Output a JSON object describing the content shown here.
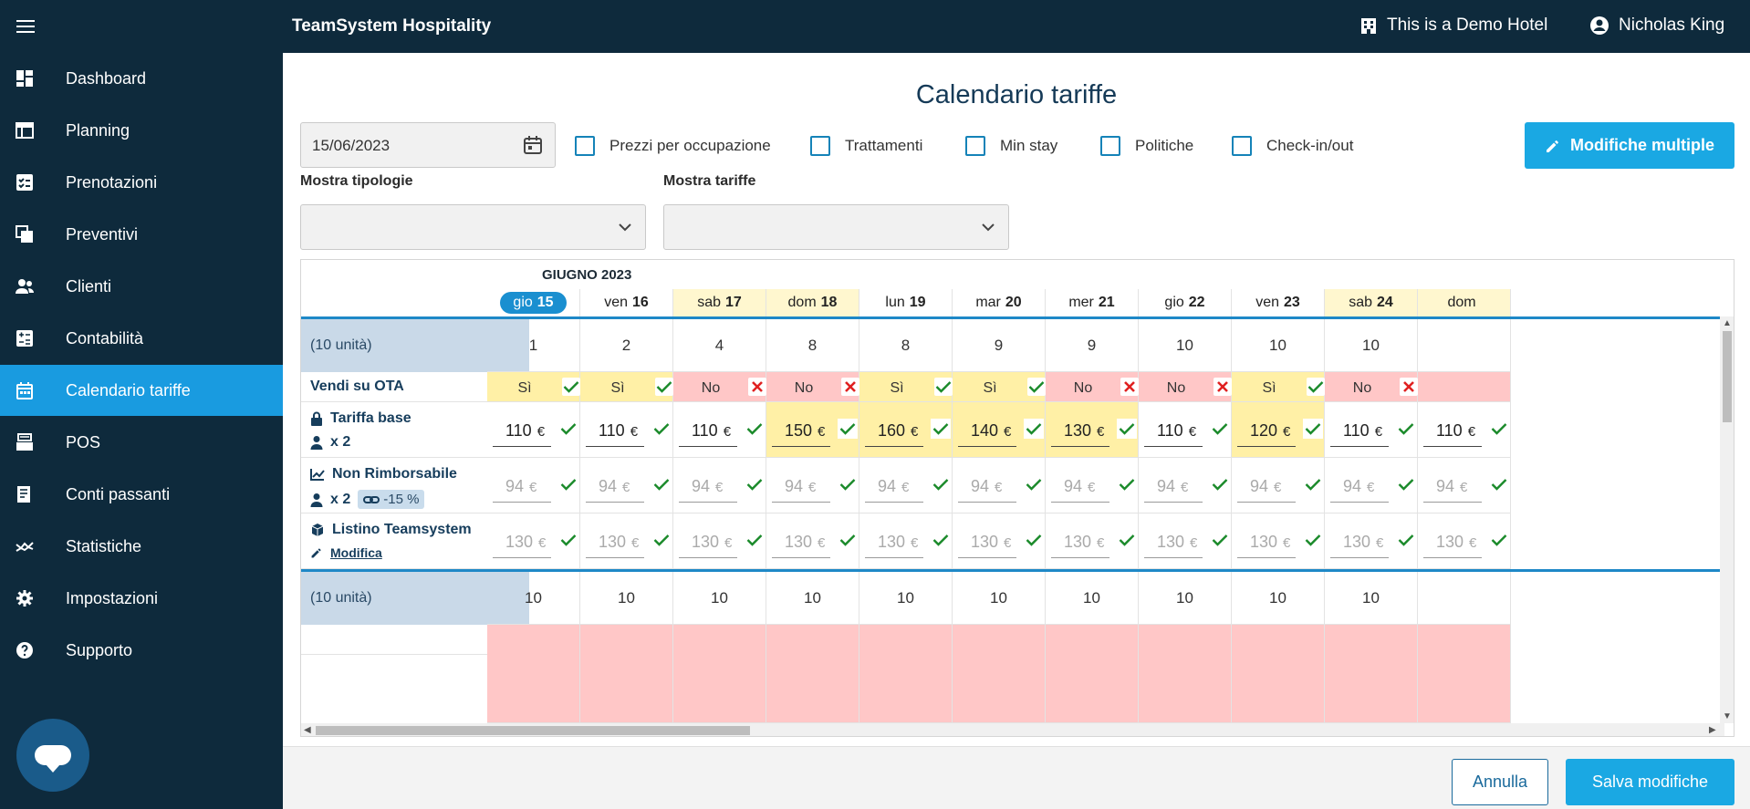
{
  "topbar": {
    "app_title": "TeamSystem Hospitality",
    "hotel": "This is a Demo Hotel",
    "user": "Nicholas King"
  },
  "sidebar": {
    "items": [
      {
        "label": "Dashboard",
        "icon": "dashboard-icon"
      },
      {
        "label": "Planning",
        "icon": "planning-icon"
      },
      {
        "label": "Prenotazioni",
        "icon": "bookings-icon"
      },
      {
        "label": "Preventivi",
        "icon": "quotes-icon"
      },
      {
        "label": "Clienti",
        "icon": "clients-icon"
      },
      {
        "label": "Contabilità",
        "icon": "accounting-icon"
      },
      {
        "label": "Calendario tariffe",
        "icon": "calendar-icon",
        "active": true
      },
      {
        "label": "POS",
        "icon": "pos-icon"
      },
      {
        "label": "Conti passanti",
        "icon": "accounts-icon"
      },
      {
        "label": "Statistiche",
        "icon": "stats-icon"
      },
      {
        "label": "Impostazioni",
        "icon": "gear-icon"
      },
      {
        "label": "Supporto",
        "icon": "help-icon"
      }
    ]
  },
  "page": {
    "title": "Calendario tariffe",
    "date_value": "15/06/2023",
    "checkboxes": [
      "Prezzi per occupazione",
      "Trattamenti",
      "Min stay",
      "Politiche",
      "Check-in/out"
    ],
    "multi_button": "Modifiche multiple",
    "filter_types_label": "Mostra tipologie",
    "filter_rates_label": "Mostra tariffe"
  },
  "grid": {
    "month": "GIUGNO 2023",
    "days": [
      {
        "dow": "gio",
        "num": "15",
        "today": true
      },
      {
        "dow": "ven",
        "num": "16"
      },
      {
        "dow": "sab",
        "num": "17",
        "weekend": true
      },
      {
        "dow": "dom",
        "num": "18",
        "weekend": true
      },
      {
        "dow": "lun",
        "num": "19"
      },
      {
        "dow": "mar",
        "num": "20"
      },
      {
        "dow": "mer",
        "num": "21"
      },
      {
        "dow": "gio",
        "num": "22"
      },
      {
        "dow": "ven",
        "num": "23"
      },
      {
        "dow": "sab",
        "num": "24",
        "weekend": true
      },
      {
        "dow": "dom",
        "num": "",
        "weekend": true
      }
    ],
    "units_label": "(10 unità)",
    "availability": [
      "1",
      "2",
      "4",
      "8",
      "8",
      "9",
      "9",
      "10",
      "10",
      "10",
      ""
    ],
    "ota_label": "Vendi su OTA",
    "ota": [
      "Sì",
      "Sì",
      "No",
      "No",
      "Sì",
      "Sì",
      "No",
      "No",
      "Sì",
      "No",
      ""
    ],
    "base_rate": {
      "name": "Tariffa base",
      "occupancy": "x 2",
      "values": [
        "110",
        "110",
        "110",
        "150",
        "160",
        "140",
        "130",
        "110",
        "120",
        "110",
        "110"
      ],
      "highlight": [
        false,
        false,
        false,
        true,
        true,
        true,
        true,
        false,
        true,
        false,
        false
      ]
    },
    "nonref_rate": {
      "name": "Non Rimborsabile",
      "occupancy": "x 2",
      "discount": "-15 %",
      "values": [
        "94",
        "94",
        "94",
        "94",
        "94",
        "94",
        "94",
        "94",
        "94",
        "94",
        "94"
      ]
    },
    "listino": {
      "name": "Listino Teamsystem",
      "edit": "Modifica",
      "values": [
        "130",
        "130",
        "130",
        "130",
        "130",
        "130",
        "130",
        "130",
        "130",
        "130",
        "130"
      ]
    },
    "units_label_2": "(10 unità)",
    "availability_2": [
      "10",
      "10",
      "10",
      "10",
      "10",
      "10",
      "10",
      "10",
      "10",
      "10",
      ""
    ],
    "currency": "€"
  },
  "footer": {
    "cancel": "Annulla",
    "save": "Salva modifiche"
  },
  "colors": {
    "sidebar_bg": "#0e2a3c",
    "accent": "#1aa8e3",
    "ota_yes": "#fff0a6",
    "ota_no": "#ffc7c7"
  }
}
